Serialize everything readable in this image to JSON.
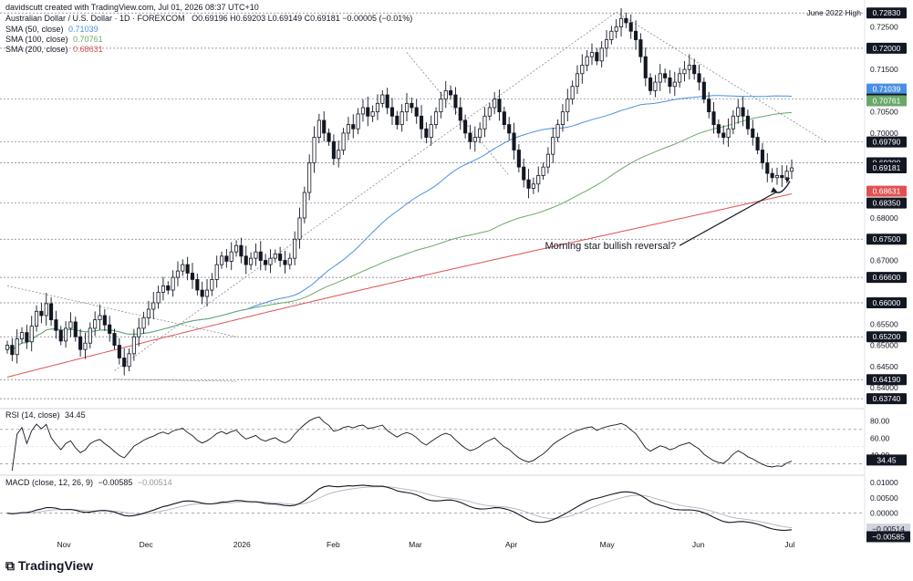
{
  "header": {
    "author_line": "davidscutt created with TradingView.com, Jul 01, 2026 08:37 UTC+10",
    "symbol_line": "Australian Dollar / U.S. Dollar · 1D · FOREXCOM",
    "ohlc_line": "O0.69196 H0.69203 L0.69149 C0.69181 −0.00005 (−0.01%)",
    "sma50_label": "SMA (50, close)",
    "sma50_value": "0.71039",
    "sma100_label": "SMA (100, close)",
    "sma100_value": "0.70761",
    "sma200_label": "SMA (200, close)",
    "sma200_value": "0.68631"
  },
  "colors": {
    "up": "#ffffff",
    "down": "#131722",
    "sma50": "#4a90e2",
    "sma100": "#6aa86a",
    "sma200": "#e05252",
    "black_tag": "#131722"
  },
  "annotation": {
    "text": "Morning star bullish reversal?",
    "level_label": "June 2022 High"
  },
  "chart_data": [
    {
      "type": "candlestick",
      "title": "",
      "symbol": "AUD/USD",
      "timeframe": "1D",
      "ylim": [
        0.6355,
        0.7305
      ],
      "x_tick_labels": [
        "Nov",
        "Dec",
        "2026",
        "Feb",
        "Mar",
        "Apr",
        "May",
        "Jun",
        "Jul"
      ],
      "y_tick_labels": [
        "0.72500",
        "0.71500",
        "0.71000",
        "0.70500",
        "0.70000",
        "0.68000",
        "0.67000",
        "0.65500",
        "0.65000",
        "0.64500",
        "0.64000"
      ],
      "level_tags": [
        {
          "label": "0.72830",
          "value": 0.7283,
          "style": "black"
        },
        {
          "label": "0.72000",
          "value": 0.72,
          "style": "black"
        },
        {
          "label": "0.71039",
          "value": 0.71039,
          "style": "blue"
        },
        {
          "label": "0.70800",
          "value": 0.708,
          "style": "black"
        },
        {
          "label": "0.70761",
          "value": 0.70761,
          "style": "green"
        },
        {
          "label": "0.69790",
          "value": 0.6979,
          "style": "black"
        },
        {
          "label": "0.69300",
          "value": 0.693,
          "style": "black"
        },
        {
          "label": "0.69181",
          "value": 0.69181,
          "style": "black"
        },
        {
          "label": "0.68631",
          "value": 0.68631,
          "style": "red"
        },
        {
          "label": "0.68350",
          "value": 0.6835,
          "style": "black"
        },
        {
          "label": "0.67500",
          "value": 0.675,
          "style": "black"
        },
        {
          "label": "0.66600",
          "value": 0.666,
          "style": "black"
        },
        {
          "label": "0.66000",
          "value": 0.66,
          "style": "black"
        },
        {
          "label": "0.65200",
          "value": 0.652,
          "style": "black"
        },
        {
          "label": "0.64190",
          "value": 0.6419,
          "style": "black"
        },
        {
          "label": "0.63740",
          "value": 0.6374,
          "style": "black"
        }
      ],
      "horizontal_levels": [
        0.7283,
        0.72,
        0.708,
        0.6979,
        0.693,
        0.6835,
        0.675,
        0.666,
        0.66,
        0.652,
        0.6419,
        0.6374
      ],
      "closes": [
        0.65,
        0.6478,
        0.6515,
        0.653,
        0.6508,
        0.6545,
        0.658,
        0.657,
        0.6598,
        0.656,
        0.6535,
        0.651,
        0.654,
        0.6555,
        0.652,
        0.649,
        0.6505,
        0.654,
        0.656,
        0.657,
        0.6548,
        0.6528,
        0.65,
        0.647,
        0.645,
        0.648,
        0.652,
        0.654,
        0.6565,
        0.6585,
        0.66,
        0.6625,
        0.664,
        0.663,
        0.666,
        0.6675,
        0.669,
        0.667,
        0.6655,
        0.663,
        0.6615,
        0.663,
        0.6655,
        0.669,
        0.671,
        0.6698,
        0.672,
        0.6735,
        0.671,
        0.669,
        0.6705,
        0.672,
        0.67,
        0.669,
        0.6705,
        0.6715,
        0.67,
        0.669,
        0.6705,
        0.675,
        0.68,
        0.686,
        0.693,
        0.699,
        0.703,
        0.7,
        0.698,
        0.694,
        0.696,
        0.7,
        0.702,
        0.701,
        0.7045,
        0.706,
        0.704,
        0.705,
        0.707,
        0.709,
        0.706,
        0.704,
        0.702,
        0.705,
        0.707,
        0.706,
        0.704,
        0.701,
        0.699,
        0.702,
        0.705,
        0.708,
        0.71,
        0.709,
        0.706,
        0.703,
        0.7,
        0.698,
        0.699,
        0.701,
        0.704,
        0.706,
        0.708,
        0.705,
        0.702,
        0.7,
        0.696,
        0.692,
        0.689,
        0.687,
        0.688,
        0.69,
        0.692,
        0.695,
        0.699,
        0.702,
        0.705,
        0.708,
        0.711,
        0.714,
        0.716,
        0.718,
        0.719,
        0.717,
        0.72,
        0.722,
        0.724,
        0.725,
        0.727,
        0.726,
        0.724,
        0.722,
        0.718,
        0.713,
        0.71,
        0.712,
        0.714,
        0.713,
        0.711,
        0.712,
        0.714,
        0.715,
        0.716,
        0.714,
        0.712,
        0.708,
        0.705,
        0.702,
        0.7,
        0.699,
        0.701,
        0.704,
        0.706,
        0.704,
        0.701,
        0.699,
        0.696,
        0.693,
        0.6905,
        0.6895,
        0.69,
        0.6895,
        0.691,
        0.6918
      ],
      "rsi": {
        "label": "RSI (14, close)",
        "value": 34.45,
        "levels": [
          70,
          30
        ],
        "ticks": [
          "80.00",
          "60.00",
          "40.00",
          "34.45"
        ]
      },
      "macd": {
        "label": "MACD (close, 12, 26, 9)",
        "macd_value": -0.00585,
        "signal_value": -0.00514,
        "ticks": [
          "0.01000",
          "0.00500",
          "0.00000",
          "−0.00514",
          "−0.00585"
        ]
      }
    }
  ]
}
